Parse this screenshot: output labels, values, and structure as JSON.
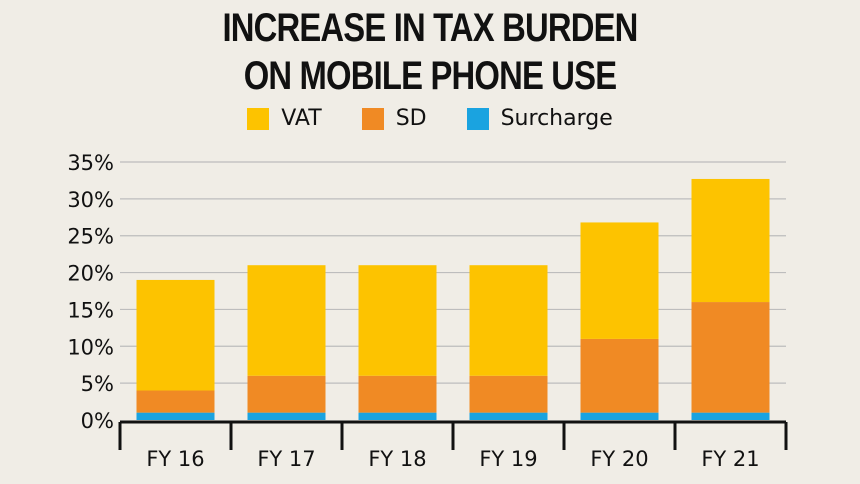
{
  "title_lines": [
    "INCREASE IN TAX BURDEN",
    "ON MOBILE PHONE USE"
  ],
  "legend": [
    {
      "label": "VAT",
      "color": "#fdc300"
    },
    {
      "label": "SD",
      "color": "#f08a24"
    },
    {
      "label": "Surcharge",
      "color": "#1aa3e0"
    }
  ],
  "chart_data": {
    "type": "bar",
    "stacked": true,
    "title": "INCREASE IN TAX BURDEN ON MOBILE PHONE USE",
    "categories": [
      "FY 16",
      "FY 17",
      "FY 18",
      "FY 19",
      "FY 20",
      "FY 21"
    ],
    "series": [
      {
        "name": "Surcharge",
        "color": "#1aa3e0",
        "values": [
          1,
          1,
          1,
          1,
          1,
          1
        ]
      },
      {
        "name": "SD",
        "color": "#f08a24",
        "values": [
          3,
          5,
          5,
          5,
          10,
          15
        ]
      },
      {
        "name": "VAT",
        "color": "#fdc300",
        "values": [
          15,
          15,
          15,
          15,
          15.8,
          16.7
        ]
      }
    ],
    "ylim": [
      0,
      35
    ],
    "yticks": [
      "0%",
      "5%",
      "10%",
      "15%",
      "20%",
      "25%",
      "30%",
      "35%"
    ],
    "grid": true,
    "legend_position": "top-center"
  }
}
